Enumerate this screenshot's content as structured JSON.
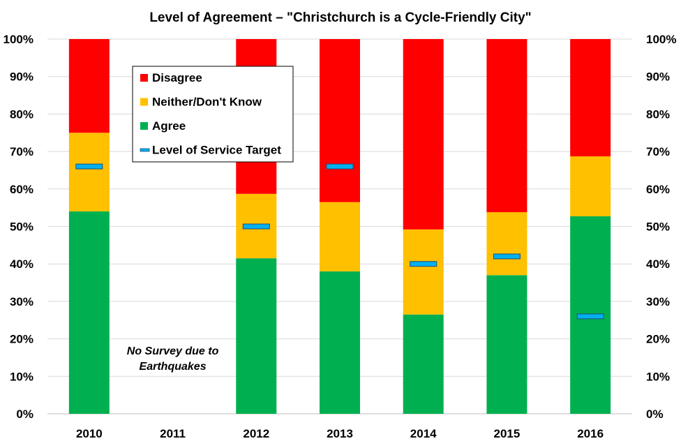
{
  "chart_data": {
    "type": "bar",
    "stacked": true,
    "title": "Level of Agreement – \"Christchurch is a Cycle-Friendly City\"",
    "categories": [
      "2010",
      "2011",
      "2012",
      "2013",
      "2014",
      "2015",
      "2016"
    ],
    "y_ticks": [
      "0%",
      "10%",
      "20%",
      "30%",
      "40%",
      "50%",
      "60%",
      "70%",
      "80%",
      "90%",
      "100%"
    ],
    "ylim": [
      0,
      100
    ],
    "series": [
      {
        "name": "Agree",
        "color": "#00b050",
        "values": [
          54,
          null,
          41.5,
          38,
          26.5,
          37,
          52.7
        ]
      },
      {
        "name": "Neither/Don't Know",
        "color": "#ffc000",
        "values": [
          21,
          null,
          17.2,
          18.5,
          22.7,
          16.8,
          16
        ]
      },
      {
        "name": "Disagree",
        "color": "#ff0000",
        "values": [
          25,
          null,
          41.3,
          43.5,
          50.8,
          46.2,
          31.3
        ]
      }
    ],
    "target": {
      "name": "Level of Service Target",
      "color": "#00b0f0",
      "values": [
        66,
        null,
        50,
        66,
        40,
        42,
        26
      ]
    },
    "legend_order": [
      "Disagree",
      "Neither/Don't Know",
      "Agree",
      "Level of Service Target"
    ],
    "legend_position": "top-left",
    "annotation": {
      "lines": [
        "No Survey due to",
        "Earthquakes"
      ],
      "category": "2011"
    },
    "grid": true,
    "secondary_y_axis": true
  }
}
